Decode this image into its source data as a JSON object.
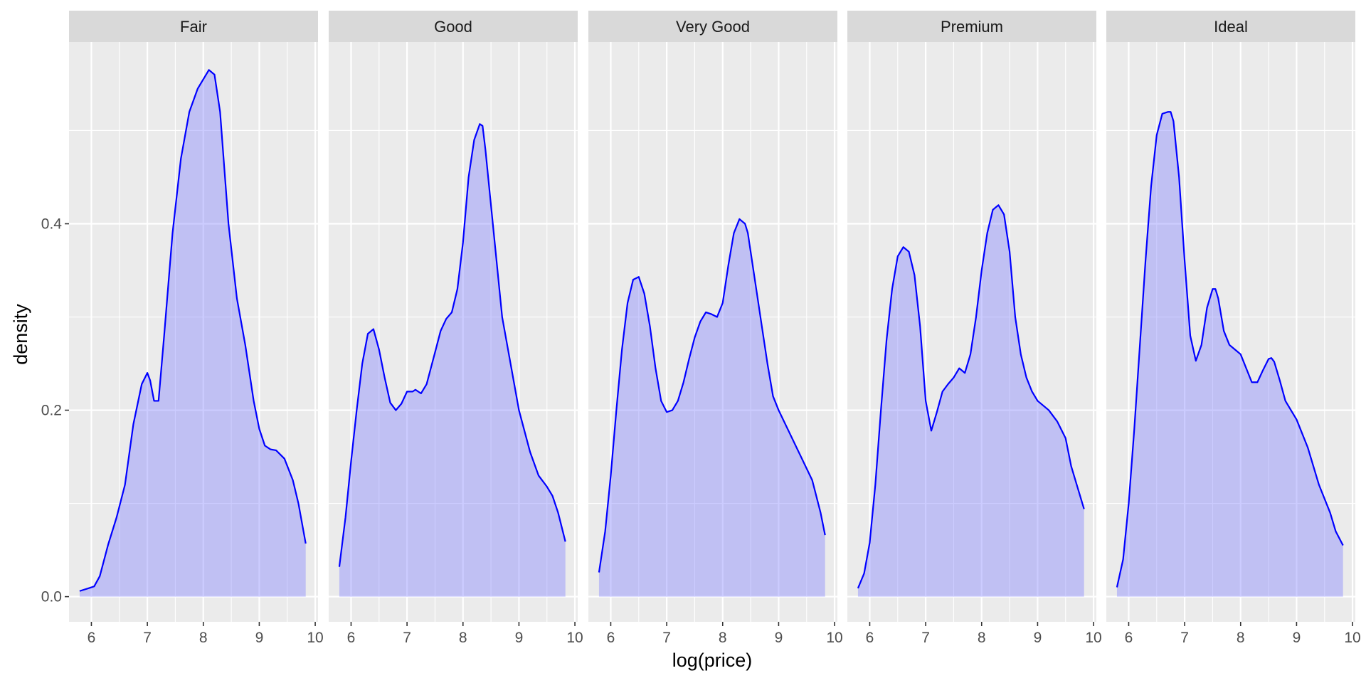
{
  "chart_data": {
    "type": "area",
    "facet_order": [
      "Fair",
      "Good",
      "Very Good",
      "Premium",
      "Ideal"
    ],
    "xlabel": "log(price)",
    "ylabel": "density",
    "xlim": [
      5.6,
      10.05
    ],
    "ylim": [
      -0.027,
      0.595
    ],
    "x_ticks": [
      6,
      7,
      8,
      9,
      10
    ],
    "y_ticks": [
      0.0,
      0.2,
      0.4
    ],
    "y_tick_labels": [
      "0.0",
      "0.2",
      "0.4"
    ],
    "grid": true,
    "line_color": "#0000ff",
    "fill_color": "#8080ff",
    "fill_opacity": 0.4,
    "panel_background": "#ebebeb",
    "strip_background": "#d9d9d9",
    "series": [
      {
        "name": "Fair",
        "x": [
          5.79,
          5.95,
          6.05,
          6.15,
          6.3,
          6.45,
          6.6,
          6.75,
          6.9,
          7.0,
          7.05,
          7.12,
          7.2,
          7.3,
          7.45,
          7.6,
          7.75,
          7.9,
          8.0,
          8.1,
          8.2,
          8.3,
          8.45,
          8.6,
          8.75,
          8.9,
          9.0,
          9.1,
          9.2,
          9.3,
          9.45,
          9.6,
          9.7,
          9.83
        ],
        "y": [
          0.006,
          0.009,
          0.011,
          0.022,
          0.056,
          0.085,
          0.12,
          0.185,
          0.228,
          0.24,
          0.232,
          0.21,
          0.21,
          0.28,
          0.39,
          0.47,
          0.52,
          0.545,
          0.555,
          0.565,
          0.56,
          0.52,
          0.4,
          0.32,
          0.27,
          0.21,
          0.18,
          0.162,
          0.158,
          0.157,
          0.148,
          0.125,
          0.1,
          0.057
        ]
      },
      {
        "name": "Good",
        "x": [
          5.79,
          5.9,
          6.0,
          6.1,
          6.2,
          6.3,
          6.4,
          6.5,
          6.6,
          6.7,
          6.8,
          6.9,
          7.0,
          7.1,
          7.15,
          7.25,
          7.35,
          7.5,
          7.6,
          7.7,
          7.8,
          7.9,
          8.0,
          8.1,
          8.2,
          8.3,
          8.35,
          8.4,
          8.5,
          8.6,
          8.7,
          8.85,
          9.0,
          9.2,
          9.35,
          9.5,
          9.6,
          9.7,
          9.83
        ],
        "y": [
          0.032,
          0.085,
          0.145,
          0.2,
          0.25,
          0.282,
          0.287,
          0.265,
          0.235,
          0.208,
          0.2,
          0.207,
          0.22,
          0.22,
          0.222,
          0.218,
          0.228,
          0.262,
          0.285,
          0.298,
          0.305,
          0.33,
          0.38,
          0.45,
          0.49,
          0.507,
          0.505,
          0.48,
          0.42,
          0.36,
          0.3,
          0.25,
          0.2,
          0.155,
          0.13,
          0.118,
          0.108,
          0.09,
          0.059
        ]
      },
      {
        "name": "Very Good",
        "x": [
          5.79,
          5.9,
          6.0,
          6.1,
          6.2,
          6.3,
          6.4,
          6.5,
          6.6,
          6.7,
          6.8,
          6.9,
          7.0,
          7.1,
          7.2,
          7.3,
          7.4,
          7.5,
          7.6,
          7.7,
          7.8,
          7.9,
          8.0,
          8.1,
          8.2,
          8.3,
          8.4,
          8.45,
          8.5,
          8.6,
          8.7,
          8.8,
          8.9,
          9.0,
          9.2,
          9.4,
          9.6,
          9.75,
          9.83
        ],
        "y": [
          0.026,
          0.07,
          0.13,
          0.2,
          0.265,
          0.315,
          0.34,
          0.343,
          0.325,
          0.29,
          0.245,
          0.21,
          0.198,
          0.2,
          0.21,
          0.23,
          0.255,
          0.278,
          0.295,
          0.305,
          0.303,
          0.3,
          0.315,
          0.355,
          0.39,
          0.405,
          0.4,
          0.39,
          0.37,
          0.33,
          0.29,
          0.25,
          0.215,
          0.2,
          0.175,
          0.15,
          0.125,
          0.09,
          0.066
        ]
      },
      {
        "name": "Premium",
        "x": [
          5.79,
          5.9,
          6.0,
          6.1,
          6.2,
          6.3,
          6.4,
          6.5,
          6.6,
          6.7,
          6.8,
          6.9,
          7.0,
          7.1,
          7.2,
          7.3,
          7.4,
          7.5,
          7.6,
          7.7,
          7.8,
          7.9,
          8.0,
          8.1,
          8.2,
          8.3,
          8.4,
          8.5,
          8.6,
          8.7,
          8.8,
          8.9,
          9.0,
          9.2,
          9.35,
          9.5,
          9.6,
          9.7,
          9.83
        ],
        "y": [
          0.009,
          0.025,
          0.058,
          0.12,
          0.2,
          0.275,
          0.33,
          0.365,
          0.375,
          0.37,
          0.345,
          0.29,
          0.21,
          0.178,
          0.198,
          0.22,
          0.228,
          0.235,
          0.245,
          0.24,
          0.26,
          0.3,
          0.35,
          0.39,
          0.415,
          0.42,
          0.41,
          0.37,
          0.3,
          0.26,
          0.235,
          0.22,
          0.21,
          0.2,
          0.188,
          0.17,
          0.14,
          0.12,
          0.094
        ]
      },
      {
        "name": "Ideal",
        "x": [
          5.79,
          5.9,
          6.0,
          6.1,
          6.2,
          6.3,
          6.4,
          6.5,
          6.6,
          6.7,
          6.75,
          6.8,
          6.9,
          7.0,
          7.1,
          7.2,
          7.3,
          7.4,
          7.5,
          7.55,
          7.6,
          7.7,
          7.8,
          7.9,
          8.0,
          8.1,
          8.2,
          8.3,
          8.4,
          8.5,
          8.55,
          8.6,
          8.7,
          8.8,
          8.9,
          9.0,
          9.2,
          9.4,
          9.6,
          9.7,
          9.83
        ],
        "y": [
          0.01,
          0.04,
          0.1,
          0.18,
          0.27,
          0.36,
          0.44,
          0.495,
          0.518,
          0.52,
          0.52,
          0.51,
          0.45,
          0.36,
          0.28,
          0.253,
          0.27,
          0.31,
          0.33,
          0.33,
          0.32,
          0.285,
          0.27,
          0.265,
          0.26,
          0.245,
          0.23,
          0.23,
          0.243,
          0.255,
          0.256,
          0.252,
          0.232,
          0.21,
          0.2,
          0.19,
          0.16,
          0.12,
          0.09,
          0.07,
          0.055
        ]
      }
    ]
  }
}
